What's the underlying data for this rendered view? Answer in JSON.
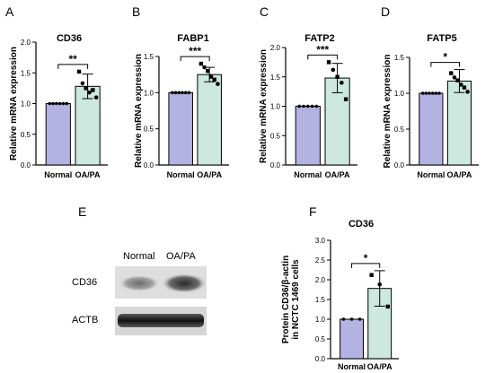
{
  "colors": {
    "normal": "#b4b2e2",
    "oapa": "#cce8df",
    "stroke": "#000000"
  },
  "blot": {
    "letter": "E",
    "columns": [
      "Normal",
      "OA/PA"
    ],
    "rows": [
      "CD36",
      "ACTB"
    ]
  },
  "chart_data": [
    {
      "type": "bar",
      "letter": "A",
      "title": "CD36",
      "ylabel": "Relative mRNA expression",
      "xlabel": "",
      "categories": [
        "Normal",
        "OA/PA"
      ],
      "values": [
        1.0,
        1.28
      ],
      "errors": [
        0,
        0.2
      ],
      "ylim": [
        0,
        2.0
      ],
      "yticks": [
        "0.0",
        "0.5",
        "1.0",
        "1.5",
        "2.0"
      ],
      "points": [
        [
          1,
          1,
          1,
          1,
          1,
          1
        ],
        [
          1.52,
          1.33,
          1.25,
          1.18,
          1.22,
          1.1
        ]
      ],
      "significance": "**"
    },
    {
      "type": "bar",
      "letter": "B",
      "title": "FABP1",
      "ylabel": "Relative mRNA expression",
      "xlabel": "",
      "categories": [
        "Normal",
        "OA/PA"
      ],
      "values": [
        1.0,
        1.25
      ],
      "errors": [
        0,
        0.1
      ],
      "ylim": [
        0,
        1.5
      ],
      "yticks": [
        "0.0",
        "0.5",
        "1.0",
        "1.5"
      ],
      "points": [
        [
          1,
          1,
          1,
          1,
          1,
          1
        ],
        [
          1.4,
          1.35,
          1.3,
          1.22,
          1.18,
          1.12
        ]
      ],
      "significance": "***"
    },
    {
      "type": "bar",
      "letter": "C",
      "title": "FATP2",
      "ylabel": "Relative mRNA expression",
      "xlabel": "",
      "categories": [
        "Normal",
        "OA/PA"
      ],
      "values": [
        1.0,
        1.48
      ],
      "errors": [
        0,
        0.25
      ],
      "ylim": [
        0,
        2.0
      ],
      "yticks": [
        "0.0",
        "0.5",
        "1.0",
        "1.5",
        "2.0"
      ],
      "points": [
        [
          1,
          1,
          1,
          1,
          1
        ],
        [
          1.75,
          1.62,
          1.5,
          1.4,
          1.12
        ]
      ],
      "significance": "***"
    },
    {
      "type": "bar",
      "letter": "D",
      "title": "FATP5",
      "ylabel": "Relative mRNA expression",
      "xlabel": "",
      "categories": [
        "Normal",
        "OA/PA"
      ],
      "values": [
        1.0,
        1.17
      ],
      "errors": [
        0,
        0.16
      ],
      "ylim": [
        0,
        1.5
      ],
      "yticks": [
        "0.0",
        "0.5",
        "1.0",
        "1.5"
      ],
      "points": [
        [
          1,
          1,
          1,
          1,
          1,
          1
        ],
        [
          1.28,
          1.22,
          1.18,
          1.12,
          1.08,
          1.02
        ]
      ],
      "significance": "*"
    },
    {
      "type": "bar",
      "letter": "F",
      "title": "CD36",
      "ylabel": "Protein CD36/β-actin\nin NCTC 1469 cells",
      "xlabel": "",
      "categories": [
        "Normal",
        "OA/PA"
      ],
      "values": [
        1.0,
        1.78
      ],
      "errors": [
        0,
        0.45
      ],
      "ylim": [
        0,
        3.0
      ],
      "yticks": [
        "0.0",
        "0.5",
        "1.0",
        "1.5",
        "2.0",
        "2.5",
        "3.0"
      ],
      "points": [
        [
          1,
          1,
          1
        ],
        [
          2.12,
          1.88,
          1.32
        ]
      ],
      "significance": "*"
    }
  ]
}
